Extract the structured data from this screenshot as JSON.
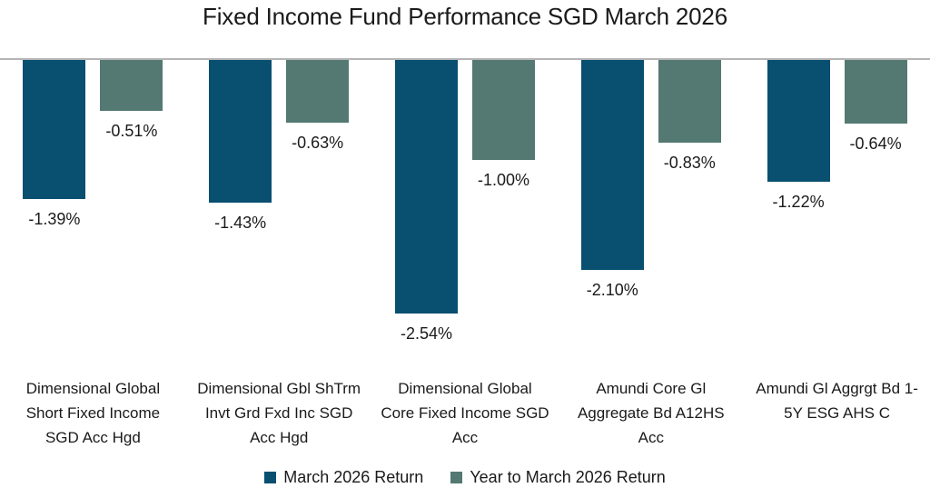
{
  "title": "Fixed Income Fund Performance SGD March 2026",
  "colors": {
    "march_return": "#084F70",
    "ytd_return": "#537972",
    "axis_line": "#B5B5B5",
    "text": "#1A1A1A"
  },
  "legend": {
    "items": [
      {
        "label": "March 2026 Return"
      },
      {
        "label": "Year to March 2026 Return"
      }
    ]
  },
  "chart_data": {
    "type": "bar",
    "title": "Fixed Income Fund Performance SGD March 2026",
    "orientation": "vertical",
    "unit": "percent",
    "categories": [
      "Dimensional Global Short Fixed Income SGD Acc Hgd",
      "Dimensional Gbl ShTrm Invt Grd Fxd Inc SGD Acc Hgd",
      "Dimensional Global Core Fixed Income SGD Acc",
      "Amundi Core Gl Aggregate Bd A12HS Acc",
      "Amundi Gl Aggrgt Bd 1-5Y ESG AHS C"
    ],
    "categories_wrapped": [
      "Dimensional Global\nShort Fixed Income\nSGD Acc Hgd",
      "Dimensional Gbl ShTrm\nInvt Grd Fxd Inc SGD\nAcc Hgd",
      "Dimensional Global\nCore Fixed Income SGD\nAcc",
      "Amundi Core Gl\nAggregate Bd A12HS\nAcc",
      "Amundi Gl Aggrgt Bd 1-\n5Y ESG AHS C"
    ],
    "series": [
      {
        "name": "March 2026 Return",
        "color": "#084F70",
        "values": [
          -1.39,
          -1.43,
          -2.54,
          -2.1,
          -1.22
        ],
        "labels": [
          "-1.39%",
          "-1.43%",
          "-2.54%",
          "-2.10%",
          "-1.22%"
        ]
      },
      {
        "name": "Year to March 2026 Return",
        "color": "#537972",
        "values": [
          -0.51,
          -0.63,
          -1.0,
          -0.83,
          -0.64
        ],
        "labels": [
          "-0.51%",
          "-0.63%",
          "-1.00%",
          "-0.83%",
          "-0.64%"
        ]
      }
    ],
    "ylim": [
      -2.8,
      0
    ],
    "baseline": 0,
    "grid": false,
    "legend_position": "bottom",
    "value_label_position": "outside-end-below-bar"
  }
}
